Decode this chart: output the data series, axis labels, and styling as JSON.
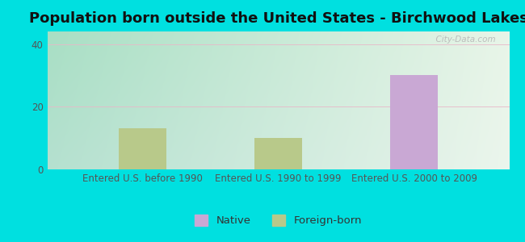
{
  "title": "Population born outside the United States - Birchwood Lakes",
  "categories": [
    "Entered U.S. before 1990",
    "Entered U.S. 1990 to 1999",
    "Entered U.S. 2000 to 2009"
  ],
  "native_values": [
    0,
    0,
    30
  ],
  "foreign_values": [
    13,
    10,
    0
  ],
  "native_color": "#c9a8d4",
  "foreign_color": "#b8c98a",
  "ylim": [
    0,
    44
  ],
  "yticks": [
    0,
    20,
    40
  ],
  "background_color": "#00e0e0",
  "bar_width": 0.35,
  "title_fontsize": 13,
  "tick_fontsize": 8.5,
  "legend_fontsize": 9.5,
  "watermark": "  City-Data.com"
}
